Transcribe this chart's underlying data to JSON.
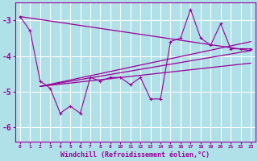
{
  "title": "",
  "xlabel": "Windchill (Refroidissement éolien,°C)",
  "bg_color": "#b0e0e8",
  "grid_color": "#ffffff",
  "line_color": "#990099",
  "x_values": [
    0,
    1,
    2,
    3,
    4,
    5,
    6,
    7,
    8,
    9,
    10,
    11,
    12,
    13,
    14,
    15,
    16,
    17,
    18,
    19,
    20,
    21,
    22,
    23
  ],
  "y_main": [
    -2.9,
    -3.3,
    -4.7,
    -4.9,
    -5.6,
    -5.4,
    -5.6,
    -4.6,
    -4.7,
    -4.6,
    -4.6,
    -4.8,
    -4.6,
    -5.2,
    -5.2,
    -3.6,
    -3.5,
    -2.7,
    -3.5,
    -3.7,
    -3.1,
    -3.8,
    -3.8,
    -3.8
  ],
  "trend_lines": [
    {
      "x": [
        0,
        23
      ],
      "y": [
        -2.9,
        -3.85
      ]
    },
    {
      "x": [
        2,
        23
      ],
      "y": [
        -4.85,
        -3.85
      ]
    },
    {
      "x": [
        2,
        23
      ],
      "y": [
        -4.85,
        -4.2
      ]
    },
    {
      "x": [
        2,
        23
      ],
      "y": [
        -4.85,
        -3.6
      ]
    }
  ],
  "ylim": [
    -6.4,
    -2.5
  ],
  "xlim": [
    -0.5,
    23.5
  ],
  "yticks": [
    -6,
    -5,
    -4,
    -3
  ]
}
